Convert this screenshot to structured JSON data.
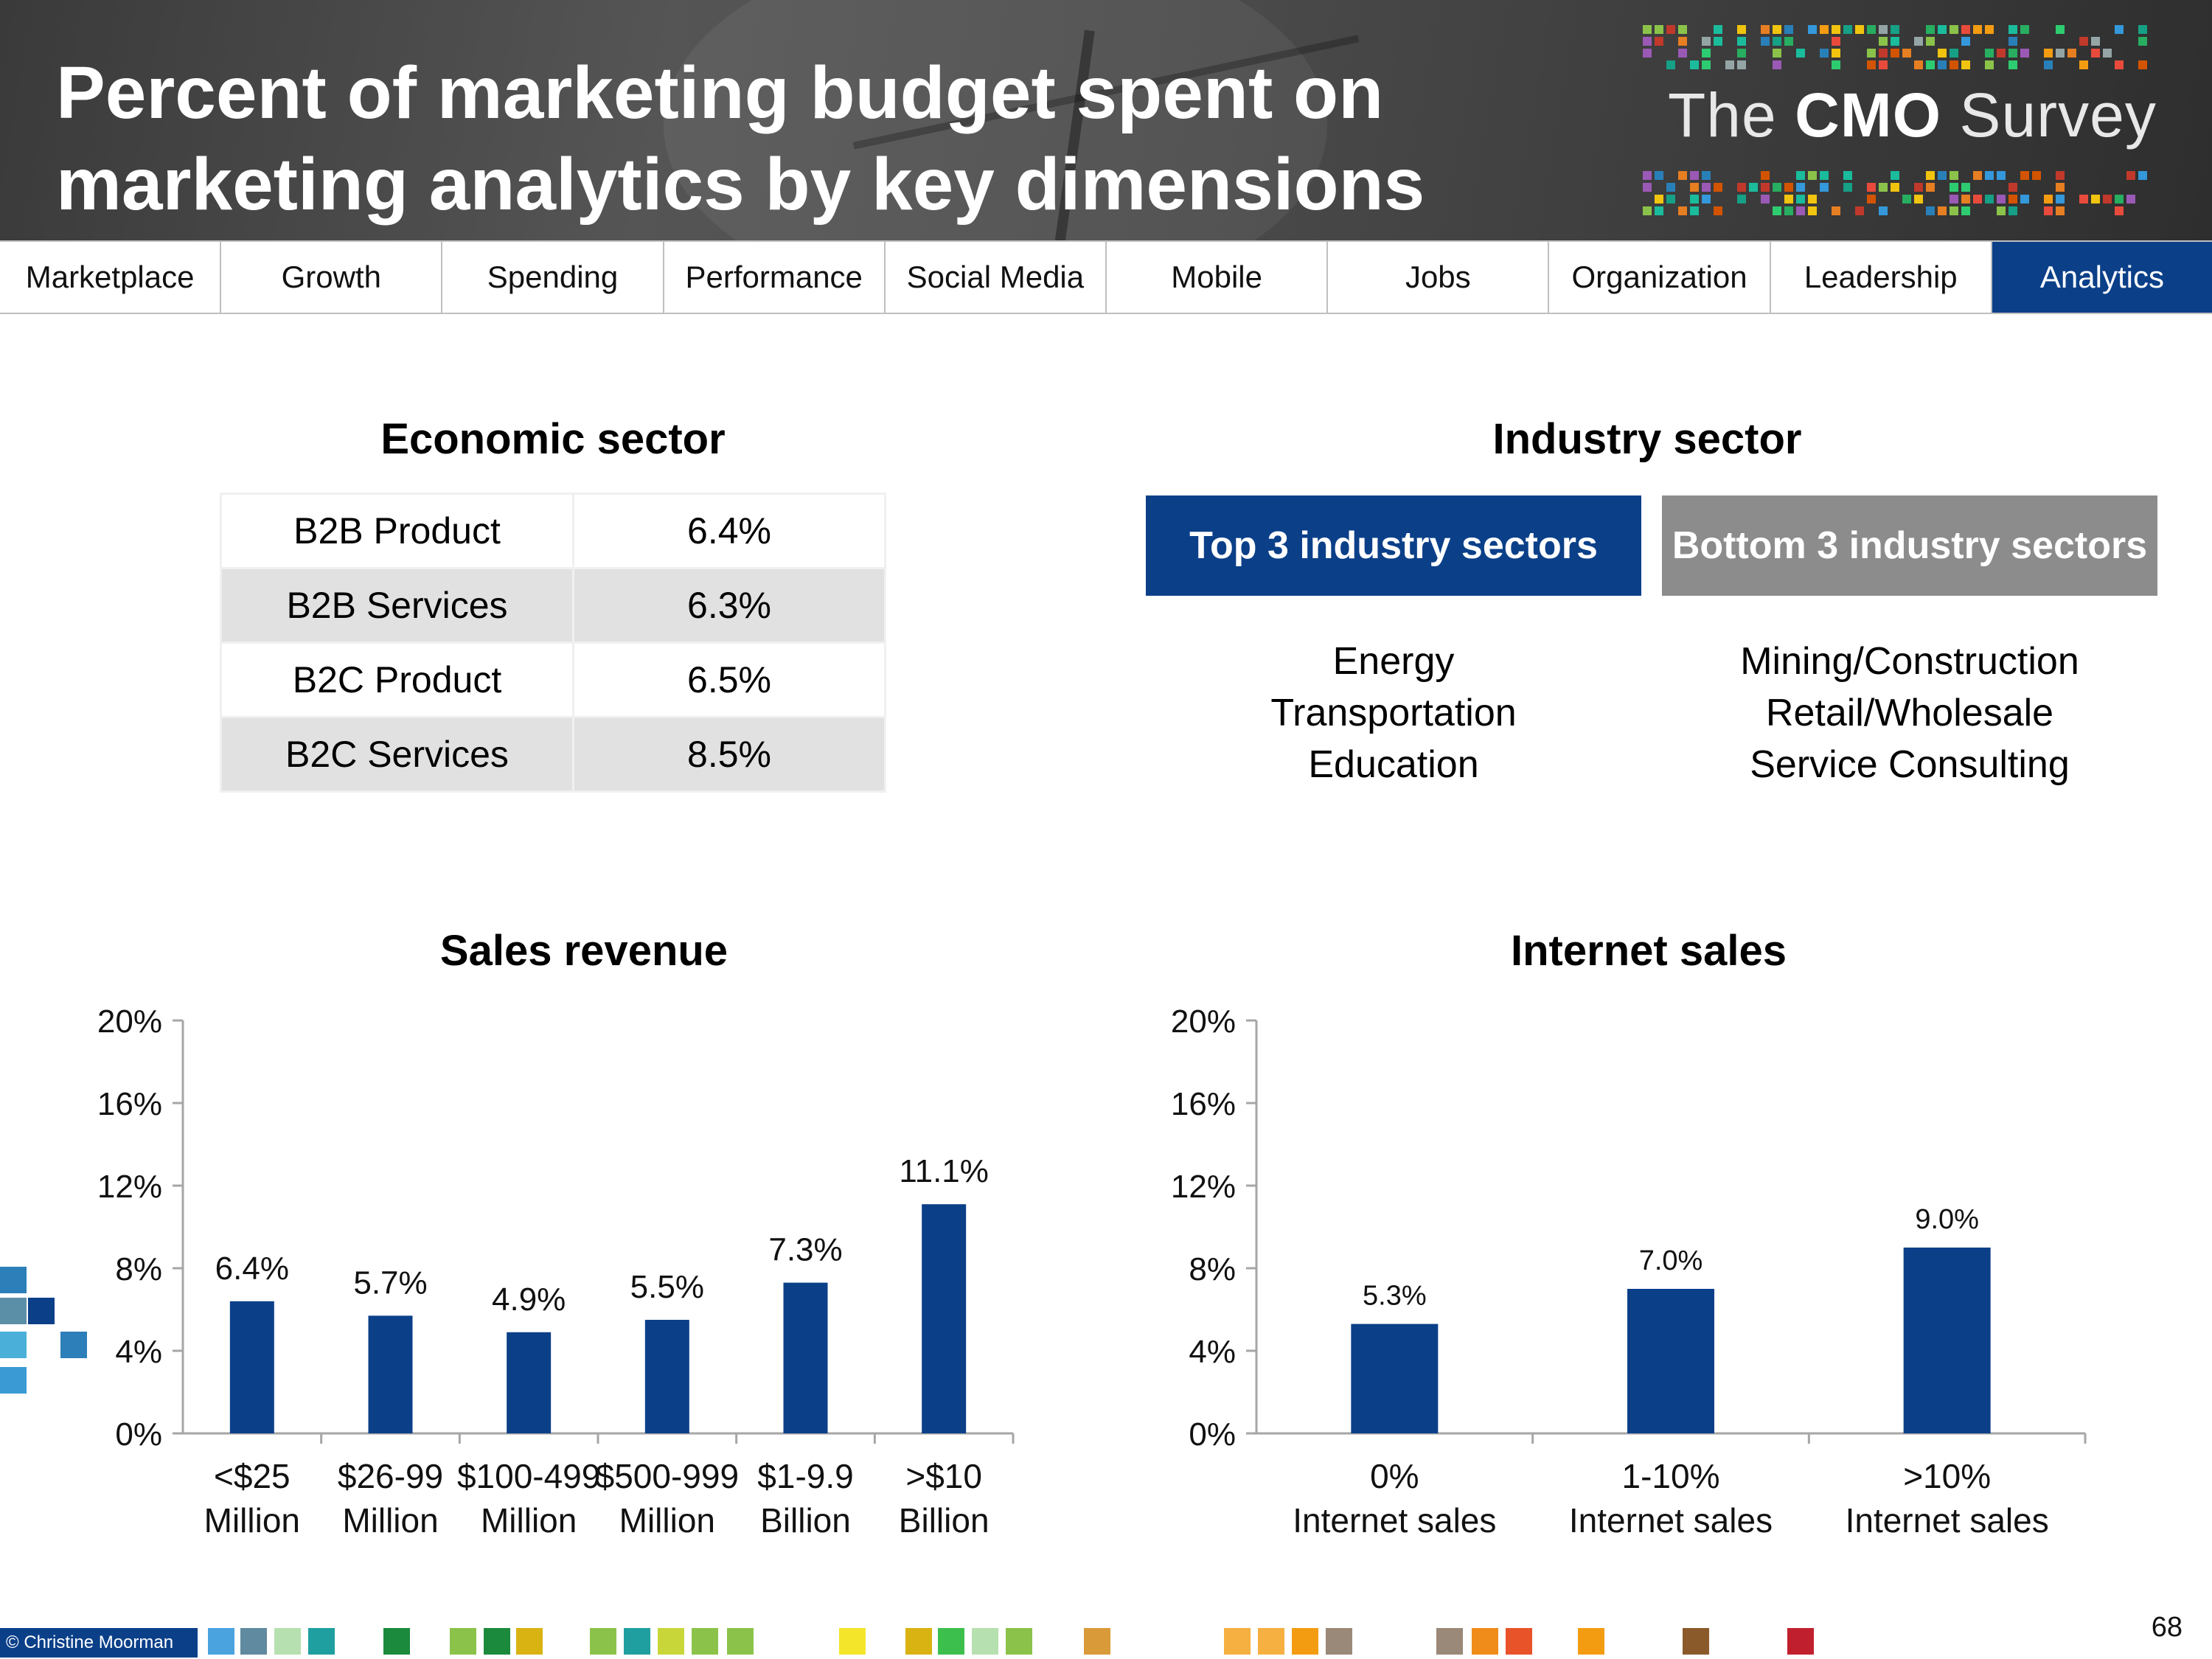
{
  "header": {
    "title_line1": "Percent of marketing budget spent on",
    "title_line2": "marketing analytics by key dimensions",
    "logo_the": "The",
    "logo_cmo": "CMO",
    "logo_survey": "Survey"
  },
  "nav": {
    "tabs": [
      "Marketplace",
      "Growth",
      "Spending",
      "Performance",
      "Social Media",
      "Mobile",
      "Jobs",
      "Organization",
      "Leadership",
      "Analytics"
    ],
    "active": "Analytics"
  },
  "economic": {
    "title": "Economic sector",
    "rows": [
      {
        "label": "B2B Product",
        "value": "6.4%"
      },
      {
        "label": "B2B Services",
        "value": "6.3%"
      },
      {
        "label": "B2C Product",
        "value": "6.5%"
      },
      {
        "label": "B2C Services",
        "value": "8.5%"
      }
    ]
  },
  "industry": {
    "title": "Industry sector",
    "top_label": "Top 3 industry sectors",
    "bottom_label": "Bottom 3 industry sectors",
    "top_items": [
      "Energy",
      "Transportation",
      "Education"
    ],
    "bottom_items": [
      "Mining/Construction",
      "Retail/Wholesale",
      "Service Consulting"
    ]
  },
  "colors": {
    "accent": "#0b4089",
    "bottom_box": "#8c8c8c"
  },
  "chart_data": [
    {
      "type": "bar",
      "title": "Sales revenue",
      "categories": [
        [
          "<$25",
          "Million"
        ],
        [
          "$26-99",
          "Million"
        ],
        [
          "$100-499",
          "Million"
        ],
        [
          "$500-999",
          "Million"
        ],
        [
          "$1-9.9",
          "Billion"
        ],
        [
          ">$10",
          "Billion"
        ]
      ],
      "values": [
        6.4,
        5.7,
        4.9,
        5.5,
        7.3,
        11.1
      ],
      "labels": [
        "6.4%",
        "5.7%",
        "4.9%",
        "5.5%",
        "7.3%",
        "11.1%"
      ],
      "yticks": [
        "0%",
        "4%",
        "8%",
        "12%",
        "16%",
        "20%"
      ],
      "ylim": [
        0,
        20
      ],
      "xlabel": "",
      "ylabel": ""
    },
    {
      "type": "bar",
      "title": "Internet sales",
      "categories": [
        [
          "0%",
          "Internet sales"
        ],
        [
          "1-10%",
          "Internet sales"
        ],
        [
          ">10%",
          "Internet sales"
        ]
      ],
      "values": [
        5.3,
        7.0,
        9.0
      ],
      "labels": [
        "5.3%",
        "7.0%",
        "9.0%"
      ],
      "yticks": [
        "0%",
        "4%",
        "8%",
        "12%",
        "16%",
        "20%"
      ],
      "ylim": [
        0,
        20
      ],
      "xlabel": "",
      "ylabel": ""
    }
  ],
  "footer": {
    "credit": "© Christine Moorman",
    "page_number": "68"
  }
}
